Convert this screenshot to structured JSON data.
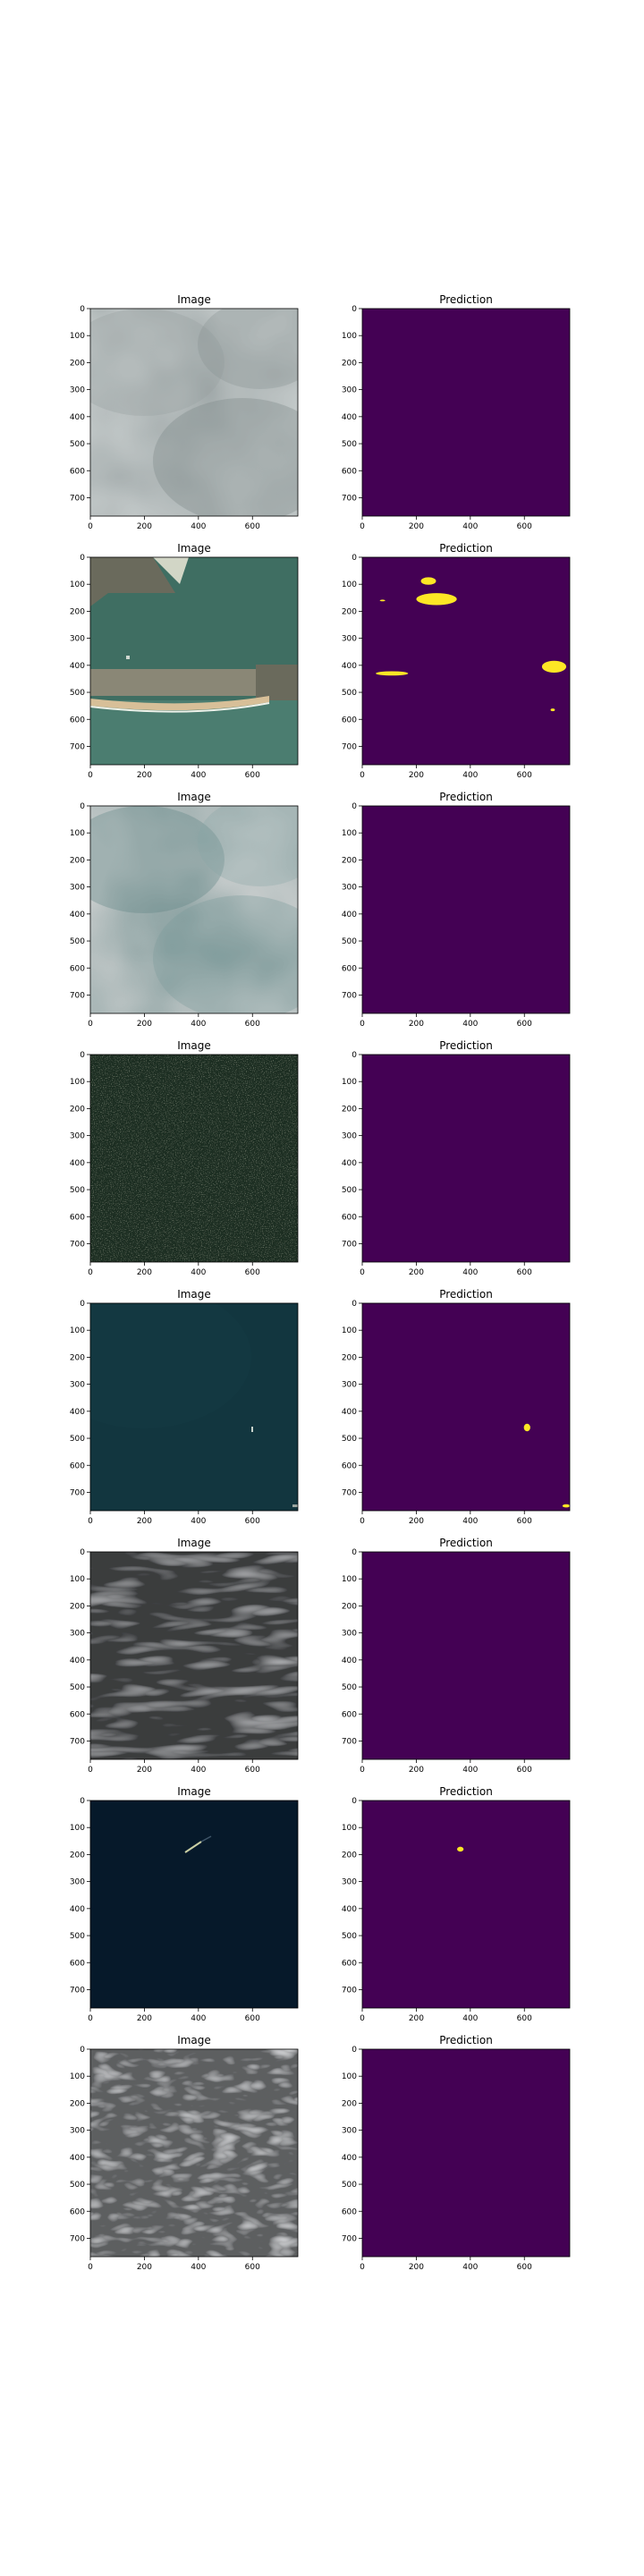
{
  "chart_data": {
    "type": "image-grid",
    "column_titles": [
      "Image",
      "Prediction"
    ],
    "x_ticks": [
      "0",
      "200",
      "400",
      "600"
    ],
    "y_ticks": [
      "0",
      "100",
      "200",
      "300",
      "400",
      "500",
      "600",
      "700"
    ],
    "xlim": [
      0,
      768
    ],
    "ylim": [
      768,
      0
    ],
    "colors": {
      "mask_background": "#440154",
      "mask_foreground": "#fde725"
    },
    "rows": [
      {
        "image": {
          "description": "cloud cover",
          "colors": [
            "#8b9596",
            "#7c8788",
            "#98a1a1",
            "#858f90"
          ]
        },
        "prediction": {
          "blobs": []
        }
      },
      {
        "image": {
          "description": "harbour with breakwaters",
          "colors": [
            "#3f6e62",
            "#4b7d70",
            "#8a8776",
            "#d7bf98",
            "#6a6a5c"
          ]
        },
        "prediction": {
          "blobs": [
            {
              "x": 245,
              "y": 88,
              "rx": 28,
              "ry": 14
            },
            {
              "x": 275,
              "y": 155,
              "rx": 75,
              "ry": 22
            },
            {
              "x": 110,
              "y": 430,
              "rx": 60,
              "ry": 8
            },
            {
              "x": 710,
              "y": 405,
              "rx": 45,
              "ry": 22
            },
            {
              "x": 705,
              "y": 565,
              "rx": 8,
              "ry": 5
            },
            {
              "x": 75,
              "y": 160,
              "rx": 10,
              "ry": 3
            }
          ]
        }
      },
      {
        "image": {
          "description": "cloud over water",
          "colors": [
            "#6e9191",
            "#7a9c9b",
            "#5f8584",
            "#87a5a4"
          ]
        },
        "prediction": {
          "blobs": []
        }
      },
      {
        "image": {
          "description": "noisy dark green water",
          "colors": [
            "#1f2d22",
            "#2b3a2d",
            "#18241a"
          ]
        },
        "prediction": {
          "blobs": []
        }
      },
      {
        "image": {
          "description": "dark sea with small object",
          "colors": [
            "#12363f",
            "#163d47",
            "#0f3039"
          ]
        },
        "prediction": {
          "blobs": [
            {
              "x": 610,
              "y": 460,
              "rx": 12,
              "ry": 14
            },
            {
              "x": 755,
              "y": 750,
              "rx": 14,
              "ry": 6
            }
          ]
        }
      },
      {
        "image": {
          "description": "rough grey sea texture",
          "colors": [
            "#3a3c3e",
            "#54575a",
            "#2a2c2e"
          ]
        },
        "prediction": {
          "blobs": []
        }
      },
      {
        "image": {
          "description": "night sea with ship wake",
          "colors": [
            "#06192a",
            "#0a2133",
            "#04121f"
          ]
        },
        "prediction": {
          "blobs": [
            {
              "x": 363,
              "y": 180,
              "rx": 12,
              "ry": 9
            }
          ]
        }
      },
      {
        "image": {
          "description": "wave texture",
          "colors": [
            "#5d5f61",
            "#77797b",
            "#3f4143"
          ]
        },
        "prediction": {
          "blobs": []
        }
      }
    ]
  }
}
